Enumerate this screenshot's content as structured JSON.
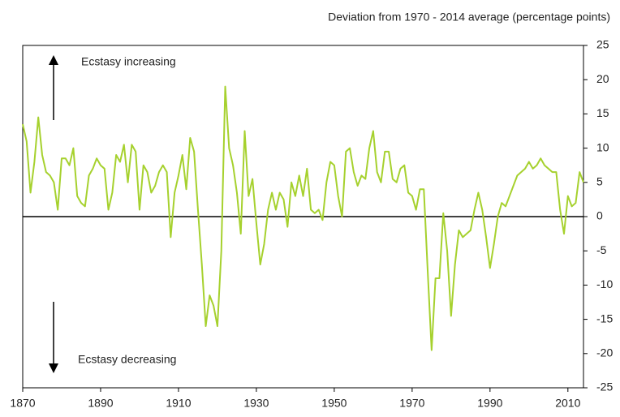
{
  "chart_data": {
    "type": "line",
    "title": "Deviation from 1970 - 2014 average (percentage points)",
    "annotations": [
      "Ecstasy increasing",
      "Ecstasy decreasing"
    ],
    "x": [
      1870,
      1871,
      1872,
      1873,
      1874,
      1875,
      1876,
      1877,
      1878,
      1879,
      1880,
      1881,
      1882,
      1883,
      1884,
      1885,
      1886,
      1887,
      1888,
      1889,
      1890,
      1891,
      1892,
      1893,
      1894,
      1895,
      1896,
      1897,
      1898,
      1899,
      1900,
      1901,
      1902,
      1903,
      1904,
      1905,
      1906,
      1907,
      1908,
      1909,
      1910,
      1911,
      1912,
      1913,
      1914,
      1915,
      1916,
      1917,
      1918,
      1919,
      1920,
      1921,
      1922,
      1923,
      1924,
      1925,
      1926,
      1927,
      1928,
      1929,
      1930,
      1931,
      1932,
      1933,
      1934,
      1935,
      1936,
      1937,
      1938,
      1939,
      1940,
      1941,
      1942,
      1943,
      1944,
      1945,
      1946,
      1947,
      1948,
      1949,
      1950,
      1951,
      1952,
      1953,
      1954,
      1955,
      1956,
      1957,
      1958,
      1959,
      1960,
      1961,
      1962,
      1963,
      1964,
      1965,
      1966,
      1967,
      1968,
      1969,
      1970,
      1971,
      1972,
      1973,
      1974,
      1975,
      1976,
      1977,
      1978,
      1979,
      1980,
      1981,
      1982,
      1983,
      1984,
      1985,
      1986,
      1987,
      1988,
      1989,
      1990,
      1991,
      1992,
      1993,
      1994,
      1995,
      1996,
      1997,
      1998,
      1999,
      2000,
      2001,
      2002,
      2003,
      2004,
      2005,
      2006,
      2007,
      2008,
      2009,
      2010,
      2011,
      2012,
      2013,
      2014
    ],
    "series": [
      {
        "color": "#a6d12e",
        "values": [
          13.5,
          11,
          3.5,
          8,
          14.5,
          9,
          6.5,
          6,
          5,
          1,
          8.5,
          8.5,
          7.5,
          10,
          3,
          2,
          1.5,
          6,
          7,
          8.5,
          7.5,
          7,
          1,
          3.5,
          9,
          8,
          10.5,
          5,
          10.5,
          9.5,
          1,
          7.5,
          6.5,
          3.5,
          4.5,
          6.5,
          7.5,
          6.5,
          -3,
          3.5,
          6,
          9,
          4,
          11.5,
          9.5,
          1,
          -7,
          -16,
          -11.5,
          -13,
          -16,
          -5,
          19,
          10,
          7.5,
          3.5,
          -2.5,
          12.5,
          3,
          5.5,
          -1,
          -7,
          -4,
          1,
          3.5,
          1,
          3.5,
          2.5,
          -1.5,
          5,
          3,
          6,
          3,
          7,
          1,
          0.5,
          1,
          -0.5,
          5,
          8,
          7.5,
          3,
          0,
          9.5,
          10,
          6.5,
          4.5,
          6,
          5.5,
          10,
          12.5,
          6.5,
          5,
          9.5,
          9.5,
          5.5,
          5,
          7,
          7.5,
          3.5,
          3,
          1,
          4,
          4,
          -8,
          -19.5,
          -9,
          -9,
          0.5,
          -5,
          -14.5,
          -7,
          -2,
          -3,
          -2.5,
          -2,
          1,
          3.5,
          1,
          -3,
          -7.5,
          -4,
          0,
          2,
          1.5,
          3,
          4.5,
          6,
          6.5,
          7,
          8,
          7,
          7.5,
          8.5,
          7.5,
          7,
          6.5,
          6.5,
          1,
          -2.5,
          3,
          1.5,
          2,
          6.5,
          5
        ]
      }
    ],
    "xlim": [
      1870,
      2014
    ],
    "xticks": [
      1870,
      1890,
      1910,
      1930,
      1950,
      1970,
      1990,
      2010
    ],
    "ylim": [
      -25,
      25
    ],
    "yticks": [
      -25,
      -20,
      -15,
      -10,
      -5,
      0,
      5,
      10,
      15,
      20,
      25
    ]
  }
}
